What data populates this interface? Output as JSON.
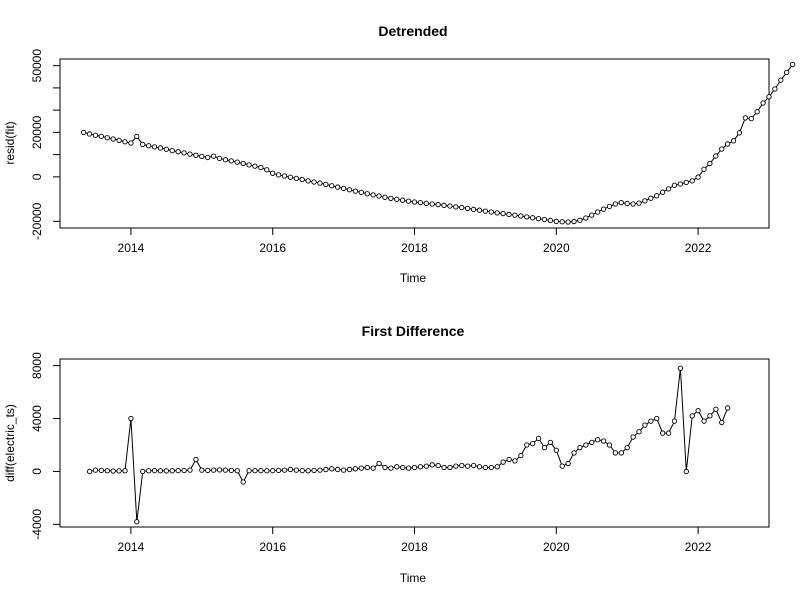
{
  "chart_data": [
    {
      "type": "line",
      "title": "Detrended",
      "xlabel": "Time",
      "ylabel": "resid(fit)",
      "xlim": [
        2013.0,
        2023.0
      ],
      "ylim": [
        -23000,
        53000
      ],
      "x_ticks": [
        2014,
        2016,
        2018,
        2020,
        2022
      ],
      "y_ticks": [
        -20000,
        0,
        20000,
        50000
      ],
      "y_minor_ticks": [
        10000,
        30000,
        40000
      ],
      "x_start": 2013.333,
      "x_step": 0.083333,
      "points": true,
      "values": [
        20000,
        19300,
        18700,
        18200,
        17600,
        17000,
        16400,
        15800,
        15200,
        18200,
        14600,
        14000,
        13500,
        13000,
        12400,
        11800,
        11300,
        10800,
        10200,
        9700,
        9200,
        8700,
        9300,
        8300,
        7700,
        7200,
        6600,
        6000,
        5400,
        4800,
        4200,
        3200,
        1600,
        900,
        400,
        -200,
        -700,
        -1200,
        -1800,
        -2300,
        -2800,
        -3400,
        -4000,
        -4600,
        -5200,
        -5800,
        -6400,
        -7000,
        -7600,
        -8100,
        -8600,
        -9200,
        -9700,
        -10100,
        -10500,
        -10900,
        -11300,
        -11600,
        -11900,
        -12200,
        -12500,
        -12800,
        -13100,
        -13500,
        -13800,
        -14200,
        -14600,
        -15000,
        -15400,
        -15800,
        -16200,
        -16500,
        -16900,
        -17200,
        -17600,
        -18000,
        -18400,
        -18800,
        -19200,
        -19600,
        -20000,
        -20200,
        -20300,
        -20100,
        -19500,
        -18500,
        -17200,
        -15800,
        -14500,
        -13300,
        -12200,
        -11600,
        -12000,
        -12200,
        -11800,
        -10800,
        -9600,
        -8500,
        -6900,
        -5400,
        -3800,
        -3200,
        -2500,
        -1800,
        -100,
        3400,
        6000,
        9400,
        12500,
        14800,
        16200,
        19800,
        26500,
        26200,
        29300,
        33200,
        36000,
        39500,
        43500,
        47000,
        50500
      ]
    },
    {
      "type": "line",
      "title": "First Difference",
      "xlabel": "Time",
      "ylabel": "diff(electric_ts)",
      "xlim": [
        2013.0,
        2023.0
      ],
      "ylim": [
        -4200,
        8500
      ],
      "x_ticks": [
        2014,
        2016,
        2018,
        2020,
        2022
      ],
      "y_ticks": [
        -4000,
        0,
        4000,
        8000
      ],
      "x_start": 2013.417,
      "x_step": 0.083333,
      "points": true,
      "values": [
        0,
        100,
        80,
        50,
        30,
        40,
        50,
        4000,
        -3800,
        0,
        50,
        60,
        50,
        40,
        50,
        60,
        70,
        100,
        900,
        100,
        80,
        100,
        120,
        100,
        80,
        50,
        -800,
        50,
        60,
        60,
        50,
        60,
        80,
        100,
        150,
        100,
        60,
        50,
        80,
        100,
        150,
        200,
        150,
        100,
        150,
        200,
        250,
        300,
        250,
        600,
        300,
        250,
        350,
        300,
        250,
        300,
        350,
        400,
        500,
        450,
        300,
        300,
        400,
        450,
        400,
        450,
        350,
        300,
        300,
        350,
        700,
        900,
        800,
        1200,
        2000,
        2100,
        2500,
        1800,
        2200,
        1600,
        400,
        600,
        1400,
        1800,
        2000,
        2200,
        2400,
        2300,
        2000,
        1400,
        1400,
        1800,
        2600,
        3000,
        3500,
        3800,
        4000,
        2900,
        2900,
        3800,
        7800,
        0,
        4200,
        4600,
        3800,
        4200,
        4700,
        3700,
        4800
      ]
    }
  ]
}
